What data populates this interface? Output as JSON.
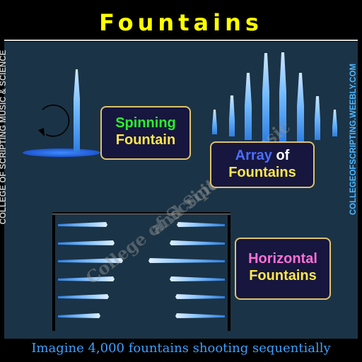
{
  "title": "Fountains",
  "side_left_text": "COLLEGE OF SCRIPTING MUSIC & SCIENCE",
  "side_right_text": "COLLEGEOFSCRIPTING.WEEBLY.COM",
  "labels": {
    "spinning": {
      "line1": "Spinning",
      "line2": "Fountain"
    },
    "array": {
      "word1": "Array",
      "word2": "of",
      "line2": "Fountains"
    },
    "horizontal": {
      "line1": "Horizontal",
      "line2": "Fountains"
    }
  },
  "watermark": {
    "line1": "College of Scripting Music",
    "line2": "and Science"
  },
  "caption": "Imagine 4,000 fountains shooting sequentially",
  "colors": {
    "background": "#1b3346",
    "title": "#ffff00",
    "water": "#6fb8ff",
    "caption": "#3da0ff",
    "box_border": "#e0c26a"
  },
  "icons": [
    "rotation-arrow-icon",
    "vertical-fountain-icon",
    "horizontal-fountain-icon"
  ]
}
